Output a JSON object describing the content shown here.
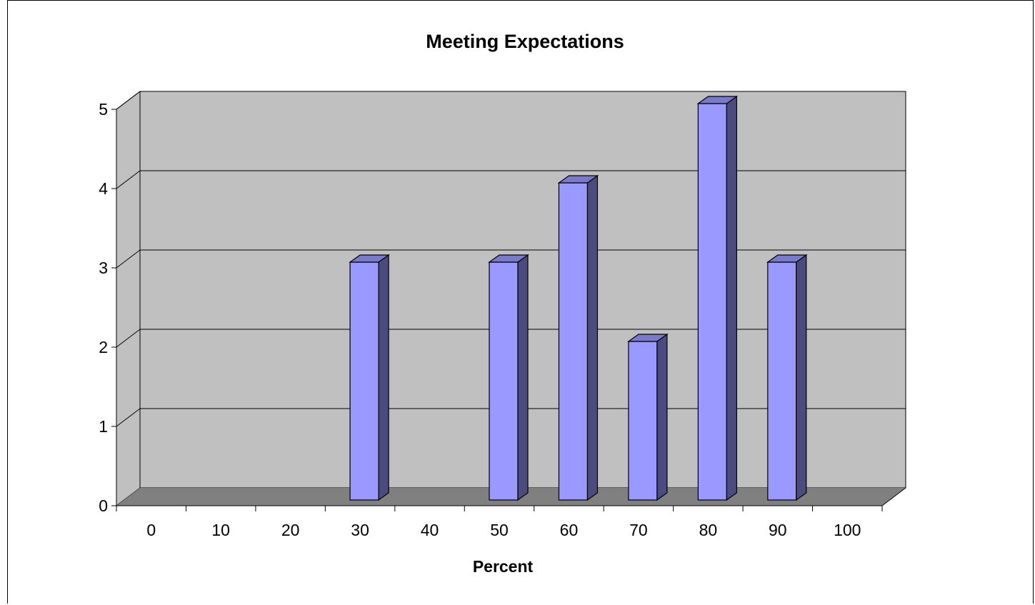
{
  "chart_data": {
    "type": "bar",
    "title": "Meeting Expectations",
    "xlabel": "Percent",
    "ylabel": "",
    "categories": [
      "0",
      "10",
      "20",
      "30",
      "40",
      "50",
      "60",
      "70",
      "80",
      "90",
      "100"
    ],
    "values": [
      0,
      0,
      0,
      3,
      0,
      3,
      4,
      2,
      5,
      3,
      0
    ],
    "y_ticks": [
      "0",
      "1",
      "2",
      "3",
      "4",
      "5"
    ],
    "ylim": [
      0,
      5
    ],
    "grid": true,
    "legend": "none",
    "colors": {
      "bar_front": "#9999ff",
      "bar_side": "#4b4b80",
      "bar_top": "#7a7acc",
      "back_wall": "#c0c0c0",
      "side_wall": "#c0c0c0",
      "floor": "#808080"
    }
  }
}
